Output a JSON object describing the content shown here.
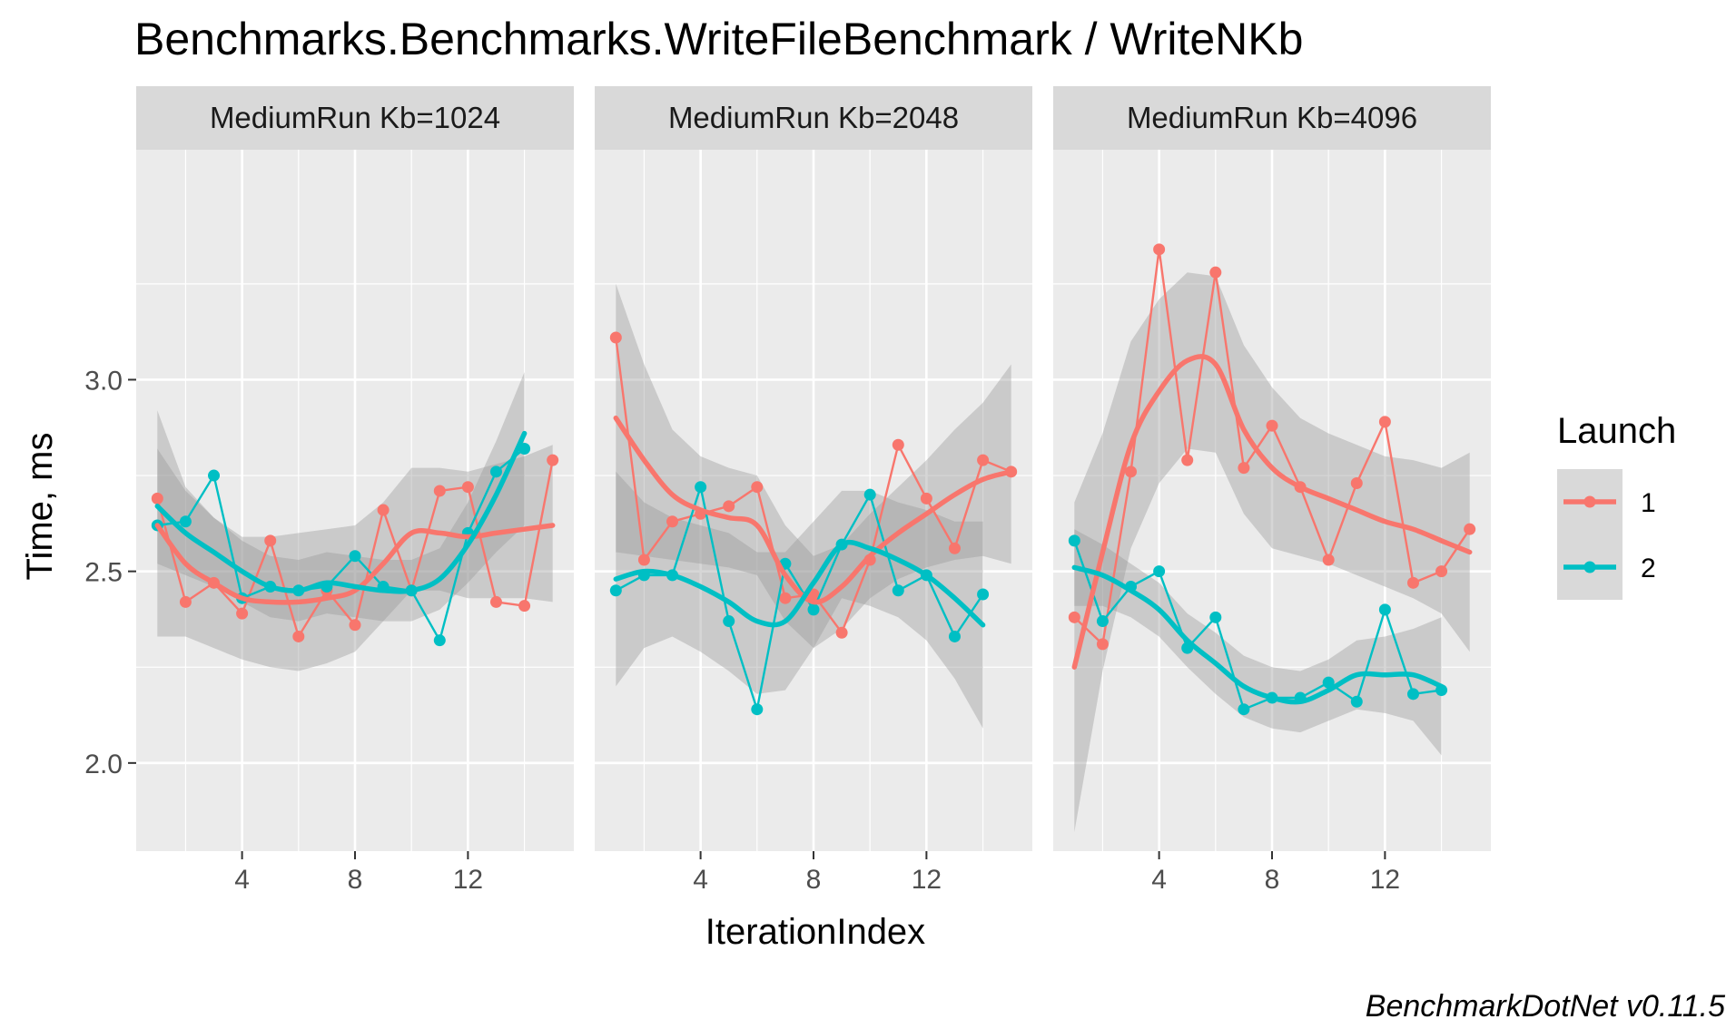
{
  "chart_data": {
    "type": "line",
    "title": "Benchmarks.Benchmarks.WriteFileBenchmark / WriteNKb",
    "xlabel": "IterationIndex",
    "ylabel": "Time, ms",
    "caption": "BenchmarkDotNet v0.11.5",
    "xlim": [
      0.25,
      15.75
    ],
    "ylim": [
      1.77,
      3.6
    ],
    "xticks": [
      4,
      8,
      12
    ],
    "yticks": [
      2.0,
      2.5,
      3.0
    ],
    "ytick_labels": [
      "2.0",
      "2.5",
      "3.0"
    ],
    "legend": {
      "title": "Launch",
      "position": "right",
      "entries": [
        {
          "label": "1",
          "color": "#F8766D"
        },
        {
          "label": "2",
          "color": "#00BFC4"
        }
      ]
    },
    "grid": true,
    "panel_background": "#EBEBEB",
    "ribbon_color": "#999999",
    "panels": [
      {
        "strip": "MediumRun Kb=1024",
        "series": [
          {
            "name": "1",
            "x": [
              1,
              2,
              3,
              4,
              5,
              6,
              7,
              8,
              9,
              10,
              11,
              12,
              13,
              14,
              15
            ],
            "y": [
              2.69,
              2.42,
              2.47,
              2.39,
              2.58,
              2.33,
              2.45,
              2.36,
              2.66,
              2.45,
              2.71,
              2.72,
              2.42,
              2.41,
              2.79
            ],
            "smooth_y": [
              2.62,
              2.52,
              2.47,
              2.43,
              2.42,
              2.42,
              2.43,
              2.45,
              2.52,
              2.6,
              2.6,
              2.59,
              2.6,
              2.61,
              2.62
            ],
            "band_lo": [
              2.33,
              2.33,
              2.3,
              2.27,
              2.25,
              2.24,
              2.26,
              2.29,
              2.37,
              2.45,
              2.45,
              2.43,
              2.43,
              2.43,
              2.42
            ],
            "band_hi": [
              2.92,
              2.72,
              2.64,
              2.59,
              2.59,
              2.6,
              2.61,
              2.62,
              2.68,
              2.77,
              2.77,
              2.76,
              2.78,
              2.8,
              2.83
            ]
          },
          {
            "name": "2",
            "x": [
              1,
              2,
              3,
              4,
              5,
              6,
              7,
              8,
              9,
              10,
              11,
              12,
              13,
              14
            ],
            "y": [
              2.62,
              2.63,
              2.75,
              2.43,
              2.46,
              2.45,
              2.46,
              2.54,
              2.46,
              2.45,
              2.32,
              2.6,
              2.76,
              2.82
            ],
            "smooth_y": [
              2.67,
              2.6,
              2.55,
              2.5,
              2.46,
              2.45,
              2.47,
              2.46,
              2.45,
              2.45,
              2.48,
              2.57,
              2.7,
              2.86
            ],
            "band_lo": [
              2.52,
              2.49,
              2.46,
              2.42,
              2.38,
              2.37,
              2.39,
              2.38,
              2.37,
              2.37,
              2.4,
              2.47,
              2.55,
              2.62
            ],
            "band_hi": [
              2.82,
              2.71,
              2.64,
              2.58,
              2.54,
              2.53,
              2.55,
              2.54,
              2.53,
              2.53,
              2.56,
              2.68,
              2.84,
              3.02
            ]
          }
        ]
      },
      {
        "strip": "MediumRun Kb=2048",
        "series": [
          {
            "name": "1",
            "x": [
              1,
              2,
              3,
              4,
              5,
              6,
              7,
              8,
              9,
              10,
              11,
              12,
              13,
              14,
              15
            ],
            "y": [
              3.11,
              2.53,
              2.63,
              2.65,
              2.67,
              2.72,
              2.43,
              2.44,
              2.34,
              2.53,
              2.83,
              2.69,
              2.56,
              2.79,
              2.76
            ],
            "smooth_y": [
              2.9,
              2.79,
              2.7,
              2.66,
              2.64,
              2.62,
              2.49,
              2.42,
              2.46,
              2.54,
              2.6,
              2.65,
              2.7,
              2.74,
              2.76
            ],
            "band_lo": [
              2.55,
              2.54,
              2.53,
              2.52,
              2.51,
              2.49,
              2.37,
              2.3,
              2.35,
              2.43,
              2.48,
              2.51,
              2.53,
              2.54,
              2.52
            ],
            "band_hi": [
              3.25,
              3.04,
              2.87,
              2.8,
              2.77,
              2.75,
              2.62,
              2.54,
              2.57,
              2.65,
              2.72,
              2.79,
              2.87,
              2.94,
              3.04
            ]
          },
          {
            "name": "2",
            "x": [
              1,
              2,
              3,
              4,
              5,
              6,
              7,
              8,
              9,
              10,
              11,
              12,
              13,
              14
            ],
            "y": [
              2.45,
              2.49,
              2.49,
              2.72,
              2.37,
              2.14,
              2.52,
              2.4,
              2.57,
              2.7,
              2.45,
              2.49,
              2.33,
              2.44
            ],
            "smooth_y": [
              2.48,
              2.5,
              2.49,
              2.46,
              2.42,
              2.37,
              2.37,
              2.47,
              2.57,
              2.56,
              2.53,
              2.49,
              2.43,
              2.36
            ],
            "band_lo": [
              2.2,
              2.3,
              2.33,
              2.29,
              2.24,
              2.18,
              2.19,
              2.3,
              2.43,
              2.41,
              2.38,
              2.32,
              2.22,
              2.09
            ],
            "band_hi": [
              2.76,
              2.68,
              2.64,
              2.62,
              2.6,
              2.55,
              2.55,
              2.63,
              2.71,
              2.71,
              2.68,
              2.66,
              2.63,
              2.63
            ]
          }
        ]
      },
      {
        "strip": "MediumRun Kb=4096",
        "series": [
          {
            "name": "1",
            "x": [
              1,
              2,
              3,
              4,
              5,
              6,
              7,
              8,
              9,
              10,
              11,
              12,
              13,
              14,
              15
            ],
            "y": [
              2.38,
              2.31,
              2.76,
              3.34,
              2.79,
              3.28,
              2.77,
              2.88,
              2.72,
              2.53,
              2.73,
              2.89,
              2.47,
              2.5,
              2.61
            ],
            "smooth_y": [
              2.25,
              2.55,
              2.83,
              2.97,
              3.05,
              3.04,
              2.87,
              2.77,
              2.72,
              2.69,
              2.66,
              2.63,
              2.61,
              2.58,
              2.55
            ],
            "band_lo": [
              1.82,
              2.24,
              2.56,
              2.73,
              2.82,
              2.81,
              2.65,
              2.56,
              2.54,
              2.52,
              2.49,
              2.46,
              2.43,
              2.39,
              2.29
            ],
            "band_hi": [
              2.68,
              2.86,
              3.1,
              3.21,
              3.28,
              3.27,
              3.09,
              2.98,
              2.9,
              2.86,
              2.83,
              2.8,
              2.79,
              2.77,
              2.81
            ]
          },
          {
            "name": "2",
            "x": [
              1,
              2,
              3,
              4,
              5,
              6,
              7,
              8,
              9,
              10,
              11,
              12,
              13,
              14
            ],
            "y": [
              2.58,
              2.37,
              2.46,
              2.5,
              2.3,
              2.38,
              2.14,
              2.17,
              2.17,
              2.21,
              2.16,
              2.4,
              2.18,
              2.19
            ],
            "smooth_y": [
              2.51,
              2.49,
              2.45,
              2.4,
              2.32,
              2.26,
              2.2,
              2.17,
              2.16,
              2.19,
              2.23,
              2.23,
              2.23,
              2.2
            ],
            "band_lo": [
              2.41,
              2.41,
              2.38,
              2.33,
              2.25,
              2.18,
              2.12,
              2.09,
              2.08,
              2.11,
              2.14,
              2.13,
              2.11,
              2.02
            ],
            "band_hi": [
              2.61,
              2.57,
              2.52,
              2.47,
              2.39,
              2.34,
              2.28,
              2.25,
              2.24,
              2.27,
              2.32,
              2.33,
              2.35,
              2.38
            ]
          }
        ]
      }
    ]
  }
}
